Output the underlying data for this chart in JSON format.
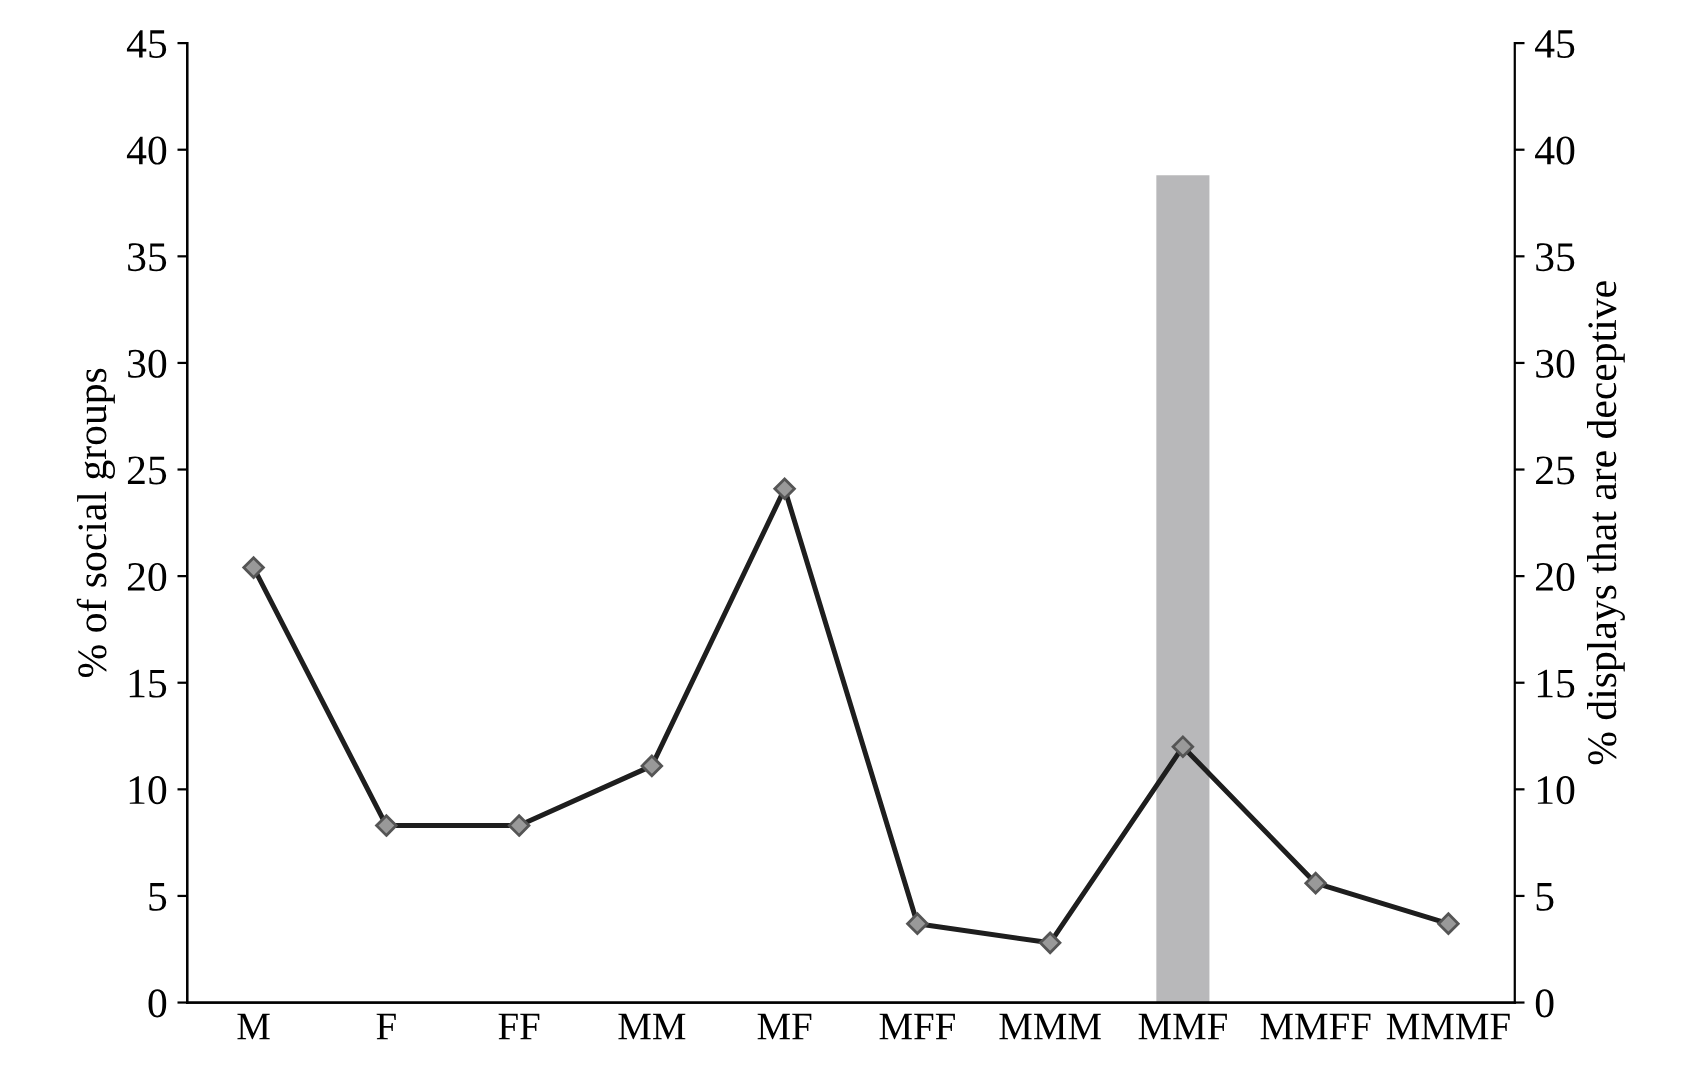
{
  "chart_data": {
    "type": "line",
    "ylabel": "% of social groups",
    "y2label": "% displays that are deceptive",
    "categories": [
      "M",
      "F",
      "FF",
      "MM",
      "MF",
      "MFF",
      "MMM",
      "MMF",
      "MMFF",
      "MMMF"
    ],
    "series": [
      {
        "type": "bar",
        "axis": "y2",
        "color": "#b8b8ba",
        "values": [
          0,
          0,
          0,
          0,
          0,
          0,
          0,
          38.8,
          0,
          0
        ]
      },
      {
        "axis": "y",
        "color": "#1e1e1e",
        "marker": "diamond",
        "line_style": "solid",
        "values": [
          20.4,
          8.3,
          8.3,
          11.1,
          24.1,
          3.7,
          2.8,
          12.0,
          5.6,
          3.7
        ]
      }
    ],
    "ylim": [
      0,
      45
    ],
    "yticks": [
      0,
      5,
      10,
      15,
      20,
      25,
      30,
      35,
      40,
      45
    ],
    "y2lim": [
      0,
      45
    ],
    "y2ticks": [
      0,
      5,
      10,
      15,
      20,
      25,
      30,
      35,
      40,
      45
    ],
    "grid": false
  }
}
